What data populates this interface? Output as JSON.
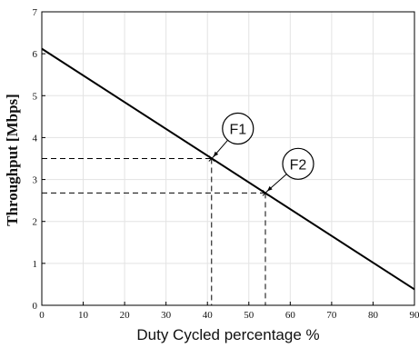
{
  "chart_data": {
    "type": "line",
    "xlabel": "Duty Cycled percentage %",
    "ylabel": "Throughput [Mbps]",
    "xlim": [
      0,
      90
    ],
    "ylim": [
      0,
      7
    ],
    "xticks": [
      0,
      10,
      20,
      30,
      40,
      50,
      60,
      70,
      80,
      90
    ],
    "yticks": [
      0,
      1,
      2,
      3,
      4,
      5,
      6,
      7
    ],
    "grid": true,
    "series": [
      {
        "x": [
          0,
          90
        ],
        "y": [
          6.12,
          0.38
        ]
      }
    ],
    "annotations": [
      {
        "label": "F1",
        "x": 41,
        "y": 3.5
      },
      {
        "label": "F2",
        "x": 54,
        "y": 2.68
      }
    ]
  }
}
